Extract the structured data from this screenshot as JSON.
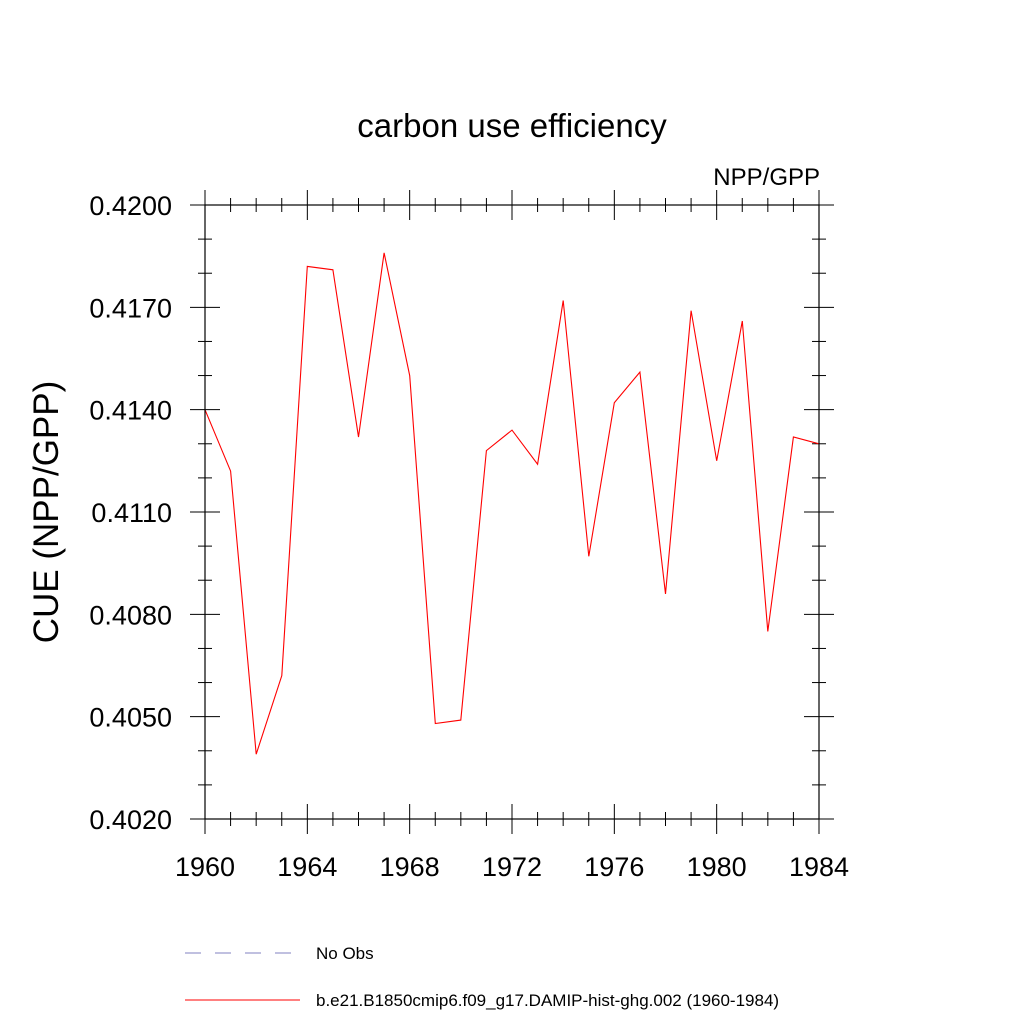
{
  "chart_data": {
    "type": "line",
    "title": "carbon use efficiency",
    "subtitle_right": "NPP/GPP",
    "ylabel": "CUE  (NPP/GPP)",
    "xlabel": "",
    "xlim": [
      1960,
      1984
    ],
    "ylim": [
      0.402,
      0.42
    ],
    "x_ticks": [
      1960,
      1964,
      1968,
      1972,
      1976,
      1980,
      1984
    ],
    "x_tick_labels": [
      "1960",
      "1964",
      "1968",
      "1972",
      "1976",
      "1980",
      "1984"
    ],
    "y_ticks": [
      0.402,
      0.405,
      0.408,
      0.411,
      0.414,
      0.417,
      0.42
    ],
    "y_tick_labels": [
      "0.4020",
      "0.4050",
      "0.4080",
      "0.4110",
      "0.4140",
      "0.4170",
      "0.4200"
    ],
    "grid": false,
    "legend_position": "bottom",
    "series": [
      {
        "name": "b.e21.B1850cmip6.f09_g17.DAMIP-hist-ghg.002 (1960-1984)",
        "color": "#ff0000",
        "style": "solid",
        "x": [
          1960,
          1961,
          1962,
          1963,
          1964,
          1965,
          1966,
          1967,
          1968,
          1969,
          1970,
          1971,
          1972,
          1973,
          1974,
          1975,
          1976,
          1977,
          1978,
          1979,
          1980,
          1981,
          1982,
          1983,
          1984
        ],
        "values": [
          0.414,
          0.4122,
          0.4039,
          0.4062,
          0.4182,
          0.4181,
          0.4132,
          0.4186,
          0.415,
          0.4048,
          0.4049,
          0.4128,
          0.4134,
          0.4124,
          0.4172,
          0.4097,
          0.4142,
          0.4151,
          0.4086,
          0.4169,
          0.4125,
          0.4166,
          0.4075,
          0.4132,
          0.413
        ]
      }
    ],
    "legend": [
      {
        "label": "No Obs",
        "color": "#8080c0",
        "style": "dashed"
      },
      {
        "label": "b.e21.B1850cmip6.f09_g17.DAMIP-hist-ghg.002 (1960-1984)",
        "color": "#ff0000",
        "style": "solid"
      }
    ]
  }
}
